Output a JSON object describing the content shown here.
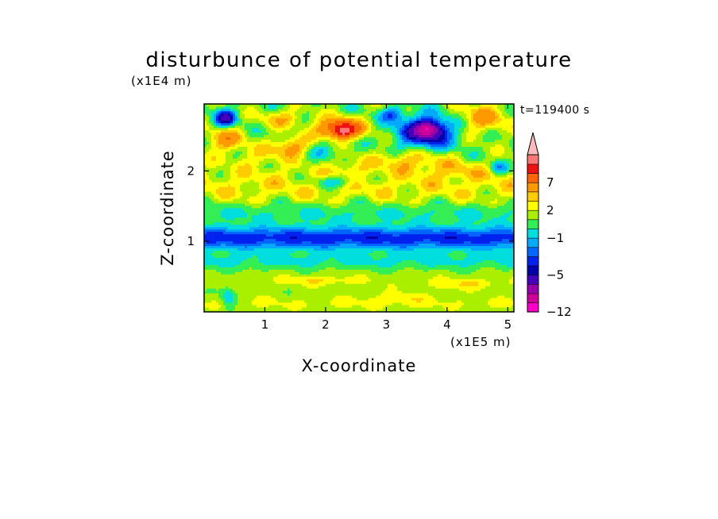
{
  "chart_data": {
    "type": "heatmap",
    "title": "disturbunce of potential temperature",
    "time_label": "t=119400 s",
    "xlabel": "X-coordinate",
    "ylabel": "Z-coordinate",
    "x_scale_label": "(x1E5 m)",
    "y_scale_label": "(x1E4 m)",
    "xlim": [
      0,
      5.1
    ],
    "ylim": [
      0,
      2.95
    ],
    "x_ticks": [
      1,
      2,
      3,
      4,
      5
    ],
    "y_ticks": [
      1,
      2
    ],
    "x_tick_labels": [
      "1",
      "2",
      "3",
      "4",
      "5"
    ],
    "y_tick_labels": [
      "1",
      "2"
    ],
    "colorbar": {
      "levels": [
        -12,
        -10,
        -8,
        -6,
        -5,
        -4,
        -3,
        -2,
        -1,
        0,
        1,
        2,
        3,
        5,
        7,
        9,
        11
      ],
      "colors": [
        "#ff00cc",
        "#cc0099",
        "#9900aa",
        "#4400bb",
        "#0000aa",
        "#0022ee",
        "#0066ff",
        "#00aaff",
        "#00dddd",
        "#33ee55",
        "#aaee00",
        "#ffff00",
        "#ffcc00",
        "#ff9900",
        "#ff6600",
        "#ee1111",
        "#ff7777",
        "#ffbbbb"
      ],
      "labels": [
        {
          "value": -12,
          "text": "−12"
        },
        {
          "value": -5,
          "text": "−5"
        },
        {
          "value": -1,
          "text": "−1"
        },
        {
          "value": 2,
          "text": "2"
        },
        {
          "value": 7,
          "text": "7"
        }
      ],
      "extend": "max"
    },
    "features": [
      {
        "x": 0.0,
        "z": 0.0,
        "sx": 10.0,
        "sz": 0.0,
        "v": 0.0
      },
      {
        "x": 2.6,
        "z": 1.05,
        "sx": 20.0,
        "sz": 0.16,
        "v": -4.6
      },
      {
        "x": 2.6,
        "z": 0.72,
        "sx": 20.0,
        "sz": 0.12,
        "v": -1.3
      },
      {
        "x": 2.6,
        "z": 1.42,
        "sx": 20.0,
        "sz": 0.14,
        "v": -1.3
      },
      {
        "x": 2.6,
        "z": 0.45,
        "sx": 20.0,
        "sz": 0.2,
        "v": 0.6
      },
      {
        "x": 2.6,
        "z": 1.8,
        "sx": 20.0,
        "sz": 0.3,
        "v": 1.6
      },
      {
        "x": 2.6,
        "z": 0.12,
        "sx": 20.0,
        "sz": 0.12,
        "v": 1.0
      },
      {
        "x": 0.35,
        "z": 2.75,
        "sx": 0.18,
        "sz": 0.12,
        "v": -6.0
      },
      {
        "x": 2.25,
        "z": 2.6,
        "sx": 0.35,
        "sz": 0.14,
        "v": 9.0
      },
      {
        "x": 2.3,
        "z": 2.55,
        "sx": 0.1,
        "sz": 0.06,
        "v": 3.0
      },
      {
        "x": 1.45,
        "z": 2.35,
        "sx": 0.3,
        "sz": 0.14,
        "v": 4.0
      },
      {
        "x": 3.65,
        "z": 2.55,
        "sx": 0.45,
        "sz": 0.22,
        "v": -7.0
      },
      {
        "x": 3.7,
        "z": 2.6,
        "sx": 0.2,
        "sz": 0.1,
        "v": -6.0
      },
      {
        "x": 4.6,
        "z": 2.75,
        "sx": 0.4,
        "sz": 0.2,
        "v": 3.5
      },
      {
        "x": 0.35,
        "z": 2.45,
        "sx": 0.3,
        "sz": 0.16,
        "v": 4.0
      },
      {
        "x": 1.3,
        "z": 2.75,
        "sx": 0.4,
        "sz": 0.12,
        "v": 2.5
      },
      {
        "x": 3.4,
        "z": 2.15,
        "sx": 0.6,
        "sz": 0.14,
        "v": 2.5
      },
      {
        "x": 2.15,
        "z": 1.85,
        "sx": 0.35,
        "sz": 0.08,
        "v": -3.0
      },
      {
        "x": 4.85,
        "z": 2.05,
        "sx": 0.15,
        "sz": 0.1,
        "v": -3.0
      },
      {
        "x": 1.95,
        "z": 2.3,
        "sx": 0.35,
        "sz": 0.15,
        "v": -1.5
      },
      {
        "x": 2.4,
        "z": 2.05,
        "sx": 0.3,
        "sz": 0.1,
        "v": 1.5
      },
      {
        "x": 3.1,
        "z": 2.8,
        "sx": 0.2,
        "sz": 0.1,
        "v": -3.5
      },
      {
        "x": 0.9,
        "z": 2.2,
        "sx": 0.4,
        "sz": 0.15,
        "v": 1.5
      },
      {
        "x": 4.2,
        "z": 2.0,
        "sx": 0.5,
        "sz": 0.12,
        "v": 1.5
      },
      {
        "x": 0.4,
        "z": 0.2,
        "sx": 0.12,
        "sz": 0.15,
        "v": -2.5
      },
      {
        "x": 1.9,
        "z": 0.45,
        "sx": 0.6,
        "sz": 0.06,
        "v": 1.5
      },
      {
        "x": 4.3,
        "z": 0.4,
        "sx": 0.6,
        "sz": 0.07,
        "v": 1.5
      },
      {
        "x": 3.2,
        "z": 0.2,
        "sx": 0.5,
        "sz": 0.08,
        "v": 1.2
      }
    ]
  }
}
